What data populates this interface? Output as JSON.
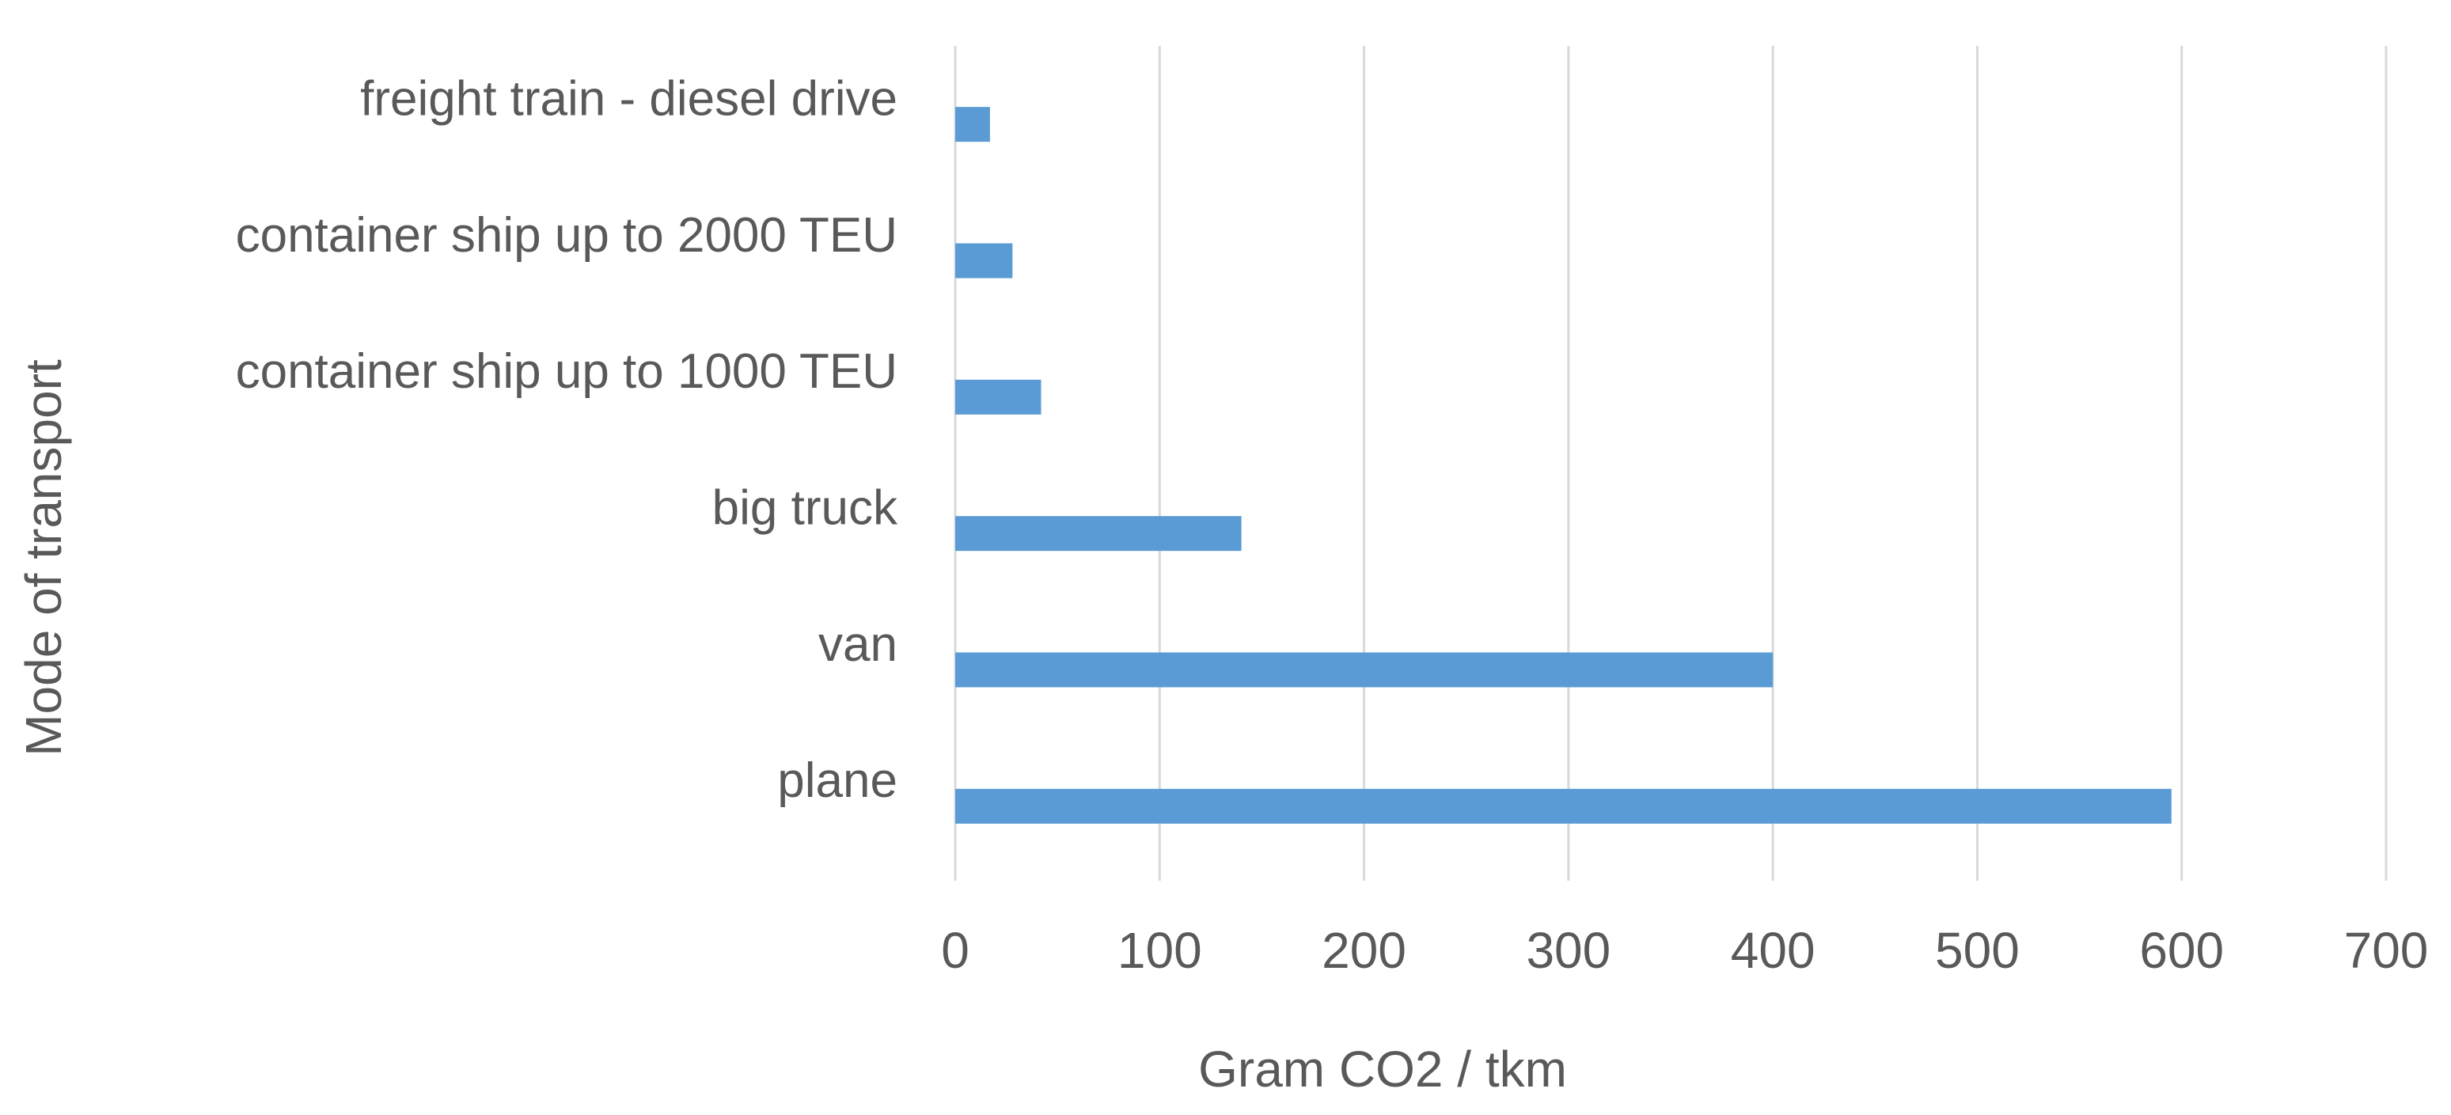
{
  "chart_data": {
    "type": "bar",
    "orientation": "horizontal",
    "categories": [
      "freight train - diesel drive",
      "container ship up to 2000 TEU",
      "container ship up to 1000 TEU",
      "big truck",
      "van",
      "plane"
    ],
    "values": [
      17,
      28,
      42,
      140,
      400,
      595
    ],
    "color": "#5b9bd5",
    "x_label": "Gram CO2 / tkm",
    "y_label": "Mode of transport",
    "xlim": [
      0,
      700
    ],
    "xticks": [
      0,
      100,
      200,
      300,
      400,
      500,
      600,
      700
    ],
    "grid": true
  }
}
